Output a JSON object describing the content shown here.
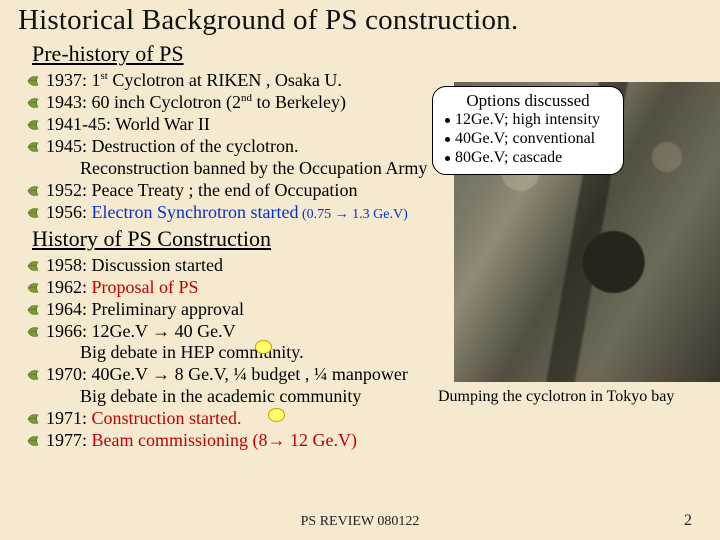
{
  "title": "Historical Background of PS construction.",
  "section1": "Pre-history of PS",
  "prehistory": [
    {
      "year": "1937:",
      "rest": " 1",
      "sup": "st",
      "rest2": " Cyclotron at RIKEN , Osaka U."
    },
    {
      "year": "1943:",
      "rest": " 60 inch Cyclotron (2",
      "sup": "nd",
      "rest2": " to Berkeley)"
    },
    {
      "year": "1941-45:",
      "rest": " World War II"
    },
    {
      "year": "1945:",
      "rest": " Destruction of the cyclotron."
    },
    {
      "indent": "Reconstruction banned by the Occupation Army"
    },
    {
      "year": "1952:",
      "rest": " Peace Treaty ; the end of Occupation"
    },
    {
      "year": "1956:",
      "rest_blue": " Electron Synchrotron started",
      "tail_small": " (0.75 → 1.3 Ge.V)"
    }
  ],
  "section2": "History of PS Construction",
  "history": [
    {
      "year": "1958:",
      "rest": " Discussion started"
    },
    {
      "year": "1962:",
      "rest_red": " Proposal of PS"
    },
    {
      "year": "1964:",
      "rest": " Preliminary approval"
    },
    {
      "year": "1966:",
      "rest": " 12Ge.V → 40 Ge.V"
    },
    {
      "indent": "Big debate in HEP community."
    },
    {
      "year": "1970:",
      "rest": "  40Ge.V → 8 Ge.V, ¼ budget , ¼ manpower"
    },
    {
      "indent": "Big debate in the academic community"
    },
    {
      "year": "1971:",
      "rest_red": "  Construction started."
    },
    {
      "year": "1977:",
      "rest_red": "  Beam commissioning",
      "tail_red": " (8→ 12 Ge.V)"
    }
  ],
  "callout": {
    "title": "Options discussed",
    "opts": [
      "12Ge.V; high intensity",
      "40Ge.V; conventional",
      "80Ge.V; cascade"
    ]
  },
  "caption": "Dumping the cyclotron in Tokyo bay",
  "footer": "PS REVIEW 080122",
  "page": "2",
  "colors": {
    "bg": "#f5e9d0",
    "red": "#c00000",
    "blue": "#0033cc",
    "yellow": "#ffff66"
  },
  "decor": {
    "oval_positions": [
      [
        255,
        340
      ],
      [
        268,
        408
      ]
    ]
  }
}
